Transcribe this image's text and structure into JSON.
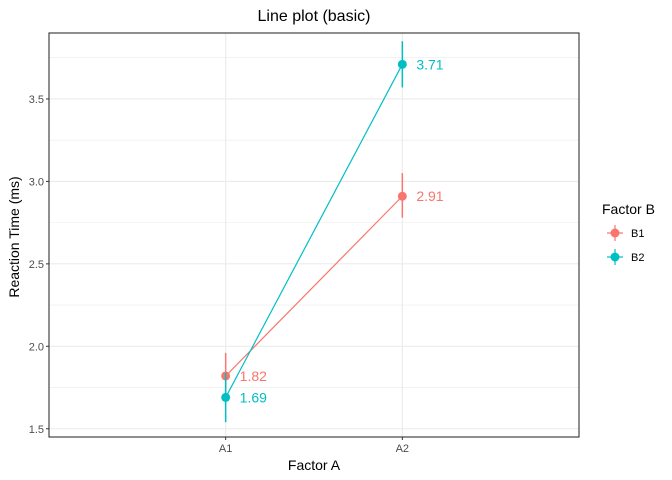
{
  "chart_data": {
    "type": "line",
    "title": "Line plot (basic)",
    "xlabel": "Factor A",
    "ylabel": "Reaction Time (ms)",
    "categories": [
      "A1",
      "A2"
    ],
    "ylim": [
      1.45,
      3.9
    ],
    "y_ticks": [
      1.5,
      2.0,
      2.5,
      3.0,
      3.5
    ],
    "y_tick_labels": [
      "1.5",
      "2.0",
      "2.5",
      "3.0",
      "3.5"
    ],
    "grid": true,
    "legend": {
      "title": "Factor B",
      "placement": "right"
    },
    "series": [
      {
        "name": "B1",
        "color": "#F8766D",
        "values": [
          1.82,
          2.91
        ],
        "error_low": [
          1.68,
          2.78
        ],
        "error_high": [
          1.96,
          3.05
        ],
        "labels": [
          "1.82",
          "2.91"
        ]
      },
      {
        "name": "B2",
        "color": "#00BFC4",
        "values": [
          1.69,
          3.71
        ],
        "error_low": [
          1.54,
          3.57
        ],
        "error_high": [
          1.84,
          3.85
        ],
        "labels": [
          "1.69",
          "3.71"
        ]
      }
    ]
  }
}
